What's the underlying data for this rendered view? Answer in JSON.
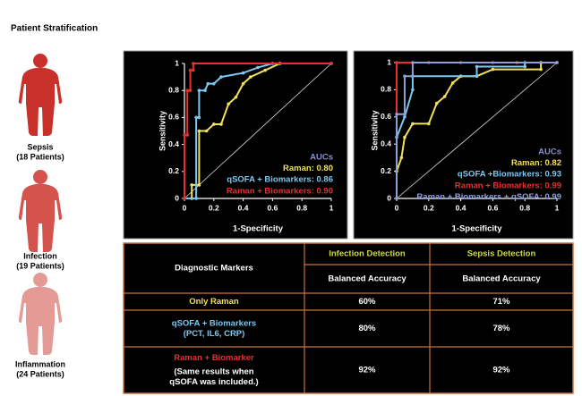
{
  "title": "Patient Stratification",
  "groups": [
    {
      "name": "Sepsis",
      "count": "(18 Patients)",
      "color": "#c8302a"
    },
    {
      "name": "Infection",
      "count": "(19 Patients)",
      "color": "#d4534c"
    },
    {
      "name": "Inflammation",
      "count": "(24 Patients)",
      "color": "#e49b96"
    }
  ],
  "chart_data": [
    {
      "type": "line",
      "xlabel": "1-Specificity",
      "ylabel": "Sensitivity",
      "legend_title": "AUCs",
      "legend_title_color": "#8a8fd0",
      "xlim": [
        0,
        1
      ],
      "ylim": [
        0,
        1
      ],
      "xticks": [
        0,
        0.2,
        0.4,
        0.6,
        0.8,
        1
      ],
      "yticks": [
        0,
        0.2,
        0.4,
        0.6,
        0.8,
        1
      ],
      "series": [
        {
          "name": "Raman: 0.80",
          "color": "#f2e15a",
          "x": [
            0,
            0.05,
            0.05,
            0.1,
            0.1,
            0.15,
            0.2,
            0.25,
            0.3,
            0.35,
            0.4,
            0.45,
            0.55,
            0.65,
            1
          ],
          "values": [
            0,
            0,
            0.1,
            0.1,
            0.5,
            0.5,
            0.55,
            0.55,
            0.7,
            0.75,
            0.85,
            0.9,
            0.95,
            1,
            1
          ]
        },
        {
          "name": "qSOFA + Biomarkers: 0.86",
          "color": "#7ec8f0",
          "x": [
            0,
            0.08,
            0.08,
            0.1,
            0.1,
            0.14,
            0.16,
            0.2,
            0.25,
            0.4,
            0.5,
            0.6,
            1
          ],
          "values": [
            0,
            0,
            0.6,
            0.6,
            0.8,
            0.8,
            0.85,
            0.85,
            0.9,
            0.93,
            0.97,
            1,
            1
          ]
        },
        {
          "name": "Raman + Biomarkers: 0.90",
          "color": "#e8312f",
          "x": [
            0,
            0,
            0.02,
            0.02,
            0.04,
            0.04,
            0.06,
            0.06,
            1
          ],
          "values": [
            0,
            0.47,
            0.47,
            0.8,
            0.8,
            0.95,
            0.95,
            1,
            1
          ]
        }
      ]
    },
    {
      "type": "line",
      "xlabel": "1-Specificity",
      "ylabel": "Sensitivity",
      "legend_title": "AUCs",
      "legend_title_color": "#8a8fd0",
      "xlim": [
        0,
        1
      ],
      "ylim": [
        0,
        1
      ],
      "xticks": [
        0,
        0.2,
        0.4,
        0.6,
        0.8,
        1
      ],
      "yticks": [
        0,
        0.2,
        0.4,
        0.6,
        0.8,
        1
      ],
      "series": [
        {
          "name": "Raman: 0.82",
          "color": "#f2e15a",
          "x": [
            0,
            0,
            0.03,
            0.05,
            0.1,
            0.2,
            0.25,
            0.3,
            0.35,
            0.4,
            0.5,
            0.6,
            0.9,
            0.9
          ],
          "values": [
            0,
            0.2,
            0.3,
            0.45,
            0.55,
            0.55,
            0.7,
            0.75,
            0.85,
            0.9,
            0.9,
            0.95,
            0.95,
            1
          ]
        },
        {
          "name": "qSOFA +Biomarkers: 0.93",
          "color": "#7ec8f0",
          "x": [
            0,
            0,
            0.05,
            0.1,
            0.1,
            0.5,
            0.5,
            0.8,
            0.8,
            1
          ],
          "values": [
            0,
            0.45,
            0.6,
            0.8,
            0.9,
            0.9,
            0.97,
            0.97,
            1,
            1
          ]
        },
        {
          "name": "Raman + Biomarkers: 0.99",
          "color": "#e8312f",
          "x": [
            0,
            0,
            0.2,
            0.4,
            0.6,
            0.75,
            1
          ],
          "values": [
            0,
            1,
            1,
            1,
            1,
            1,
            1
          ]
        },
        {
          "name": "Raman + Biomarkers + qSOFA: 0.99",
          "color": "#8fa0d8",
          "x": [
            0,
            0,
            0.05,
            0.05,
            0.1,
            0.1,
            1
          ],
          "values": [
            0,
            0.62,
            0.62,
            0.9,
            0.9,
            1,
            1
          ]
        }
      ]
    }
  ],
  "table": {
    "header": [
      "Diagnostic Markers",
      "Infection Detection",
      "Sepsis Detection"
    ],
    "header_color": "#c9d94a",
    "subheader": [
      "Balanced Accuracy",
      "Balanced Accuracy"
    ],
    "rows": [
      {
        "label": [
          "Only Raman"
        ],
        "color": "#f2e15a",
        "values": [
          "60%",
          "71%"
        ]
      },
      {
        "label": [
          "qSOFA + Biomarkers",
          "(PCT, IL6, CRP)"
        ],
        "color": "#7ec8f0",
        "values": [
          "80%",
          "78%"
        ]
      },
      {
        "label": [
          "Raman + Biomarker"
        ],
        "color": "#e8312f",
        "note": [
          "(Same results when",
          "qSOFA was included.)"
        ],
        "values": [
          "92%",
          "92%"
        ]
      }
    ]
  }
}
